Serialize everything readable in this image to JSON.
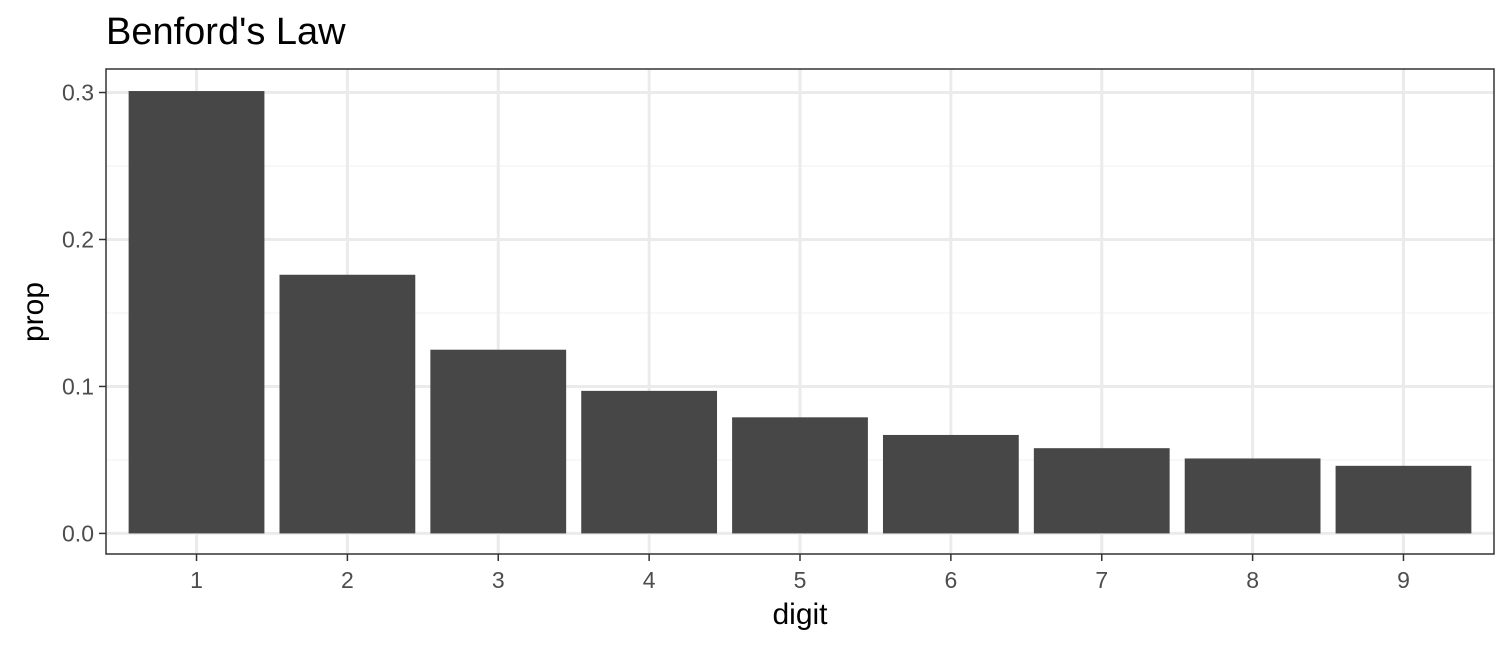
{
  "chart_data": {
    "type": "bar",
    "title": "Benford's Law",
    "xlabel": "digit",
    "ylabel": "prop",
    "categories": [
      "1",
      "2",
      "3",
      "4",
      "5",
      "6",
      "7",
      "8",
      "9"
    ],
    "values": [
      0.301,
      0.176,
      0.125,
      0.097,
      0.079,
      0.067,
      0.058,
      0.051,
      0.046
    ],
    "ylim": [
      -0.014,
      0.316
    ],
    "yticks": [
      0.0,
      0.1,
      0.2,
      0.3
    ],
    "ytick_labels": [
      "0.0",
      "0.1",
      "0.2",
      "0.3"
    ],
    "yminor": [
      0.05,
      0.15,
      0.25
    ],
    "grid": true,
    "legend": "none",
    "colors": {
      "bar": "#474747",
      "grid_major": "#ebebeb",
      "grid_minor": "#f5f5f5",
      "panel_border": "#333333",
      "tick_text": "#4d4d4d"
    }
  }
}
